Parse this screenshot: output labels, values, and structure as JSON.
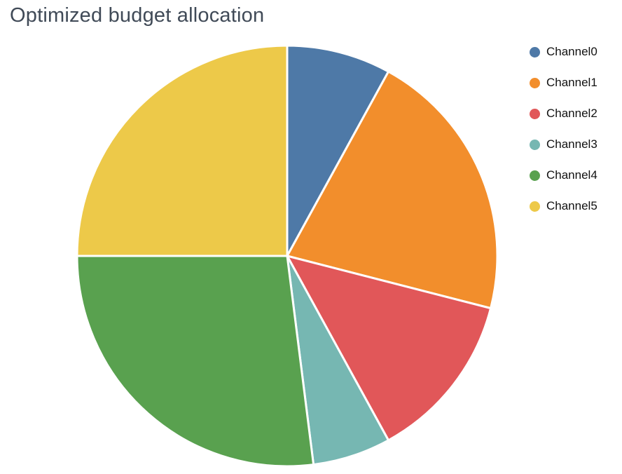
{
  "chart": {
    "title": "Optimized budget allocation"
  },
  "chart_data": {
    "type": "pie",
    "title": "Optimized budget allocation",
    "labels": [
      "Channel0",
      "Channel1",
      "Channel2",
      "Channel3",
      "Channel4",
      "Channel5"
    ],
    "values": [
      8,
      21,
      13,
      6,
      27,
      25
    ],
    "unit": "percent",
    "colors": [
      "#4e79a7",
      "#f28e2c",
      "#e15759",
      "#76b7b2",
      "#59a14f",
      "#edc949"
    ],
    "start_angle_deg": 0,
    "direction": "clockwise",
    "legend_position": "right",
    "slice_gap": true,
    "background": "#ffffff"
  }
}
